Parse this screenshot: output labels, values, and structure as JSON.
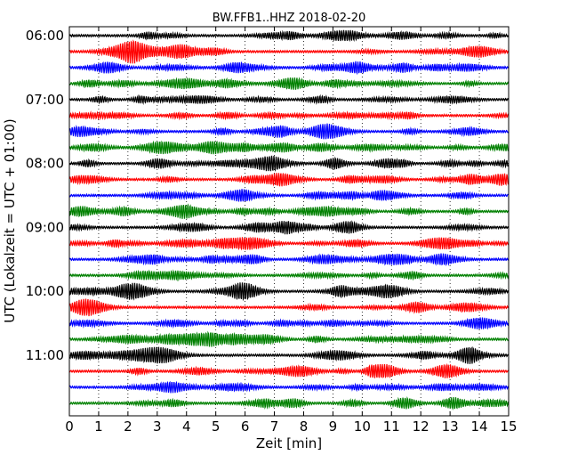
{
  "chart_data": {
    "type": "line",
    "title": "BW.FFB1..HHZ 2018-02-20",
    "xlabel": "Zeit  [min]",
    "ylabel": "UTC (Lokalzeit = UTC + 01:00)",
    "xlim": [
      0,
      15
    ],
    "x_ticks": [
      "0",
      "1",
      "2",
      "3",
      "4",
      "5",
      "6",
      "7",
      "8",
      "9",
      "10",
      "11",
      "12",
      "13",
      "14",
      "15"
    ],
    "y_ticks": [
      "06:00",
      "07:00",
      "08:00",
      "09:00",
      "10:00",
      "11:00"
    ],
    "grid": "vertical dotted",
    "trace_interval_min": 15,
    "trace_colors": [
      "#000000",
      "#ff0000",
      "#0000ff",
      "#008000"
    ],
    "traces": [
      {
        "start": "06:00"
      },
      {
        "start": "06:15"
      },
      {
        "start": "06:30"
      },
      {
        "start": "06:45"
      },
      {
        "start": "07:00"
      },
      {
        "start": "07:15"
      },
      {
        "start": "07:30"
      },
      {
        "start": "07:45"
      },
      {
        "start": "08:00"
      },
      {
        "start": "08:15"
      },
      {
        "start": "08:30"
      },
      {
        "start": "08:45"
      },
      {
        "start": "09:00"
      },
      {
        "start": "09:15"
      },
      {
        "start": "09:30"
      },
      {
        "start": "09:45"
      },
      {
        "start": "10:00"
      },
      {
        "start": "10:15"
      },
      {
        "start": "10:30"
      },
      {
        "start": "10:45"
      },
      {
        "start": "11:00"
      },
      {
        "start": "11:15"
      },
      {
        "start": "11:30"
      },
      {
        "start": "11:45"
      }
    ]
  }
}
